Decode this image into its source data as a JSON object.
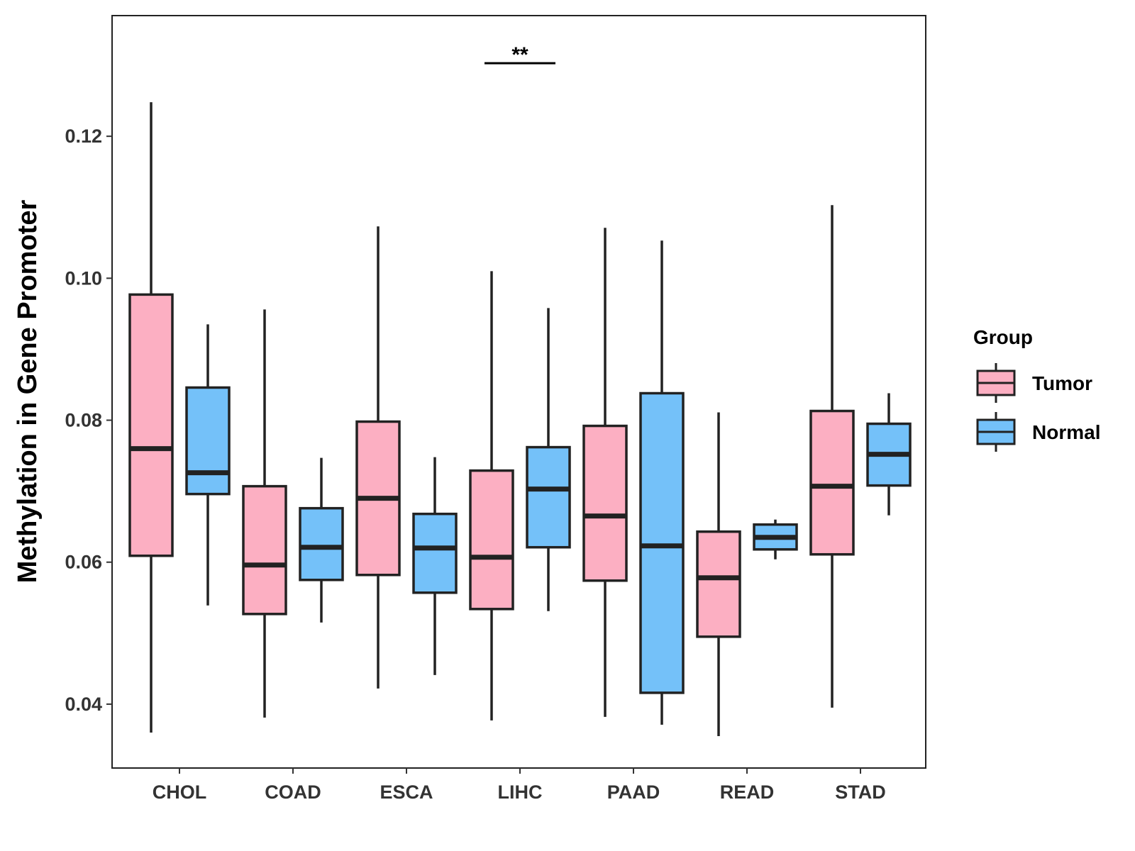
{
  "chart_data": {
    "type": "boxplot",
    "title": "",
    "xlabel": "",
    "ylabel": "Methylation in Gene Promoter",
    "ylim": [
      0.031,
      0.137
    ],
    "yticks": [
      0.04,
      0.06,
      0.08,
      0.1,
      0.12
    ],
    "ytick_labels": [
      "0.04",
      "0.06",
      "0.08",
      "0.10",
      "0.12"
    ],
    "categories": [
      "CHOL",
      "COAD",
      "ESCA",
      "LIHC",
      "PAAD",
      "READ",
      "STAD"
    ],
    "legend": {
      "title": "Group",
      "position": "right",
      "entries": [
        {
          "name": "Tumor",
          "color": "#FCAFC2"
        },
        {
          "name": "Normal",
          "color": "#74C1F9"
        }
      ]
    },
    "series": [
      {
        "name": "Tumor",
        "color": "#FCAFC2",
        "boxes": [
          {
            "min": 0.036,
            "q1": 0.0609,
            "median": 0.076,
            "q3": 0.0977,
            "max": 0.1248
          },
          {
            "min": 0.0381,
            "q1": 0.0527,
            "median": 0.0596,
            "q3": 0.0707,
            "max": 0.0956
          },
          {
            "min": 0.0422,
            "q1": 0.0582,
            "median": 0.069,
            "q3": 0.0798,
            "max": 0.1073
          },
          {
            "min": 0.0377,
            "q1": 0.0534,
            "median": 0.0607,
            "q3": 0.0729,
            "max": 0.101
          },
          {
            "min": 0.0382,
            "q1": 0.0574,
            "median": 0.0665,
            "q3": 0.0792,
            "max": 0.1071
          },
          {
            "min": 0.0355,
            "q1": 0.0495,
            "median": 0.0578,
            "q3": 0.0643,
            "max": 0.0811
          },
          {
            "min": 0.0395,
            "q1": 0.0611,
            "median": 0.0707,
            "q3": 0.0813,
            "max": 0.1103
          }
        ]
      },
      {
        "name": "Normal",
        "color": "#74C1F9",
        "boxes": [
          {
            "min": 0.0539,
            "q1": 0.0696,
            "median": 0.0726,
            "q3": 0.0846,
            "max": 0.0935
          },
          {
            "min": 0.0515,
            "q1": 0.0575,
            "median": 0.0621,
            "q3": 0.0676,
            "max": 0.0747
          },
          {
            "min": 0.0441,
            "q1": 0.0557,
            "median": 0.062,
            "q3": 0.0668,
            "max": 0.0748
          },
          {
            "min": 0.0531,
            "q1": 0.0621,
            "median": 0.0703,
            "q3": 0.0762,
            "max": 0.0958
          },
          {
            "min": 0.0371,
            "q1": 0.0416,
            "median": 0.0623,
            "q3": 0.0838,
            "max": 0.1053
          },
          {
            "min": 0.0604,
            "q1": 0.0618,
            "median": 0.0635,
            "q3": 0.0653,
            "max": 0.066
          },
          {
            "min": 0.0666,
            "q1": 0.0708,
            "median": 0.0752,
            "q3": 0.0795,
            "max": 0.0838
          }
        ]
      }
    ],
    "annotations": [
      {
        "category": "LIHC",
        "text": "**",
        "y": 0.1303
      }
    ]
  }
}
